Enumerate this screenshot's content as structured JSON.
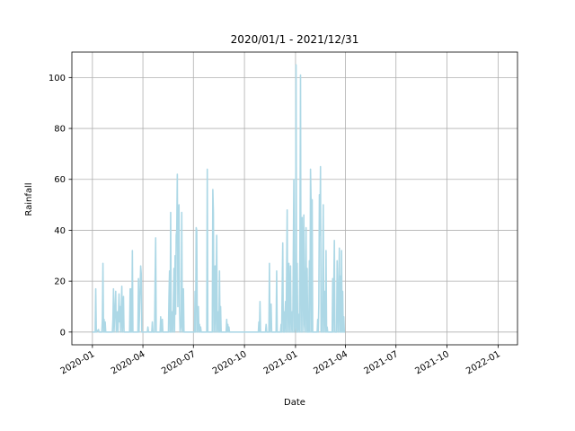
{
  "chart_data": {
    "type": "line",
    "title": "2020/01/1 - 2021/12/31",
    "xlabel": "Date",
    "ylabel": "Rainfall",
    "xlim": [
      "2019-11-25",
      "2022-02-05"
    ],
    "ylim": [
      -5,
      110
    ],
    "grid": true,
    "line_color": "#add8e6",
    "x_ticks": [
      {
        "date": "2020-01-01",
        "label": "2020-01"
      },
      {
        "date": "2020-04-01",
        "label": "2020-04"
      },
      {
        "date": "2020-07-01",
        "label": "2020-07"
      },
      {
        "date": "2020-10-01",
        "label": "2020-10"
      },
      {
        "date": "2021-01-01",
        "label": "2021-01"
      },
      {
        "date": "2021-04-01",
        "label": "2021-04"
      },
      {
        "date": "2021-07-01",
        "label": "2021-07"
      },
      {
        "date": "2021-10-01",
        "label": "2021-10"
      },
      {
        "date": "2022-01-01",
        "label": "2022-01"
      }
    ],
    "y_ticks": [
      0,
      20,
      40,
      60,
      80,
      100
    ],
    "series": [
      {
        "points": [
          [
            "2020-01-01",
            0
          ],
          [
            "2020-01-06",
            0
          ],
          [
            "2020-01-07",
            17
          ],
          [
            "2020-01-08",
            0
          ],
          [
            "2020-01-12",
            1
          ],
          [
            "2020-01-13",
            0
          ],
          [
            "2020-01-18",
            0
          ],
          [
            "2020-01-19",
            5
          ],
          [
            "2020-01-20",
            27
          ],
          [
            "2020-01-21",
            0
          ],
          [
            "2020-01-22",
            5
          ],
          [
            "2020-01-23",
            0
          ],
          [
            "2020-01-24",
            4
          ],
          [
            "2020-01-25",
            0
          ],
          [
            "2020-02-06",
            0
          ],
          [
            "2020-02-07",
            5
          ],
          [
            "2020-02-08",
            17
          ],
          [
            "2020-02-09",
            0
          ],
          [
            "2020-02-12",
            16
          ],
          [
            "2020-02-13",
            0
          ],
          [
            "2020-02-15",
            8
          ],
          [
            "2020-02-16",
            0
          ],
          [
            "2020-02-18",
            15
          ],
          [
            "2020-02-19",
            4
          ],
          [
            "2020-02-20",
            10
          ],
          [
            "2020-02-21",
            0
          ],
          [
            "2020-02-23",
            18
          ],
          [
            "2020-02-24",
            0
          ],
          [
            "2020-02-26",
            14
          ],
          [
            "2020-02-27",
            0
          ],
          [
            "2020-03-08",
            0
          ],
          [
            "2020-03-09",
            17
          ],
          [
            "2020-03-10",
            0
          ],
          [
            "2020-03-11",
            17
          ],
          [
            "2020-03-12",
            0
          ],
          [
            "2020-03-13",
            32
          ],
          [
            "2020-03-14",
            0
          ],
          [
            "2020-03-23",
            0
          ],
          [
            "2020-03-24",
            21
          ],
          [
            "2020-03-25",
            0
          ],
          [
            "2020-03-28",
            26
          ],
          [
            "2020-03-29",
            23
          ],
          [
            "2020-03-30",
            0
          ],
          [
            "2020-04-09",
            0
          ],
          [
            "2020-04-10",
            2
          ],
          [
            "2020-04-11",
            0
          ],
          [
            "2020-04-17",
            0
          ],
          [
            "2020-04-18",
            4
          ],
          [
            "2020-04-19",
            0
          ],
          [
            "2020-04-22",
            0
          ],
          [
            "2020-04-23",
            20
          ],
          [
            "2020-04-24",
            37
          ],
          [
            "2020-04-25",
            0
          ],
          [
            "2020-05-02",
            0
          ],
          [
            "2020-05-03",
            6
          ],
          [
            "2020-05-04",
            0
          ],
          [
            "2020-05-06",
            5
          ],
          [
            "2020-05-07",
            0
          ],
          [
            "2020-05-17",
            0
          ],
          [
            "2020-05-18",
            14
          ],
          [
            "2020-05-19",
            24
          ],
          [
            "2020-05-20",
            0
          ],
          [
            "2020-05-21",
            47
          ],
          [
            "2020-05-22",
            0
          ],
          [
            "2020-05-24",
            8
          ],
          [
            "2020-05-25",
            0
          ],
          [
            "2020-05-27",
            25
          ],
          [
            "2020-05-28",
            0
          ],
          [
            "2020-05-29",
            30
          ],
          [
            "2020-05-30",
            7
          ],
          [
            "2020-05-31",
            38
          ],
          [
            "2020-06-01",
            40
          ],
          [
            "2020-06-02",
            62
          ],
          [
            "2020-06-03",
            10
          ],
          [
            "2020-06-04",
            44
          ],
          [
            "2020-06-05",
            50
          ],
          [
            "2020-06-06",
            9
          ],
          [
            "2020-06-07",
            0
          ],
          [
            "2020-06-09",
            3
          ],
          [
            "2020-06-10",
            47
          ],
          [
            "2020-06-11",
            0
          ],
          [
            "2020-06-12",
            2
          ],
          [
            "2020-06-13",
            17
          ],
          [
            "2020-06-14",
            0
          ],
          [
            "2020-07-03",
            0
          ],
          [
            "2020-07-04",
            16
          ],
          [
            "2020-07-05",
            0
          ],
          [
            "2020-07-06",
            41
          ],
          [
            "2020-07-07",
            40
          ],
          [
            "2020-07-08",
            0
          ],
          [
            "2020-07-09",
            4
          ],
          [
            "2020-07-10",
            10
          ],
          [
            "2020-07-11",
            0
          ],
          [
            "2020-07-12",
            3
          ],
          [
            "2020-07-13",
            0
          ],
          [
            "2020-07-14",
            2
          ],
          [
            "2020-07-15",
            0
          ],
          [
            "2020-07-25",
            0
          ],
          [
            "2020-07-26",
            64
          ],
          [
            "2020-07-27",
            0
          ],
          [
            "2020-08-04",
            0
          ],
          [
            "2020-08-05",
            56
          ],
          [
            "2020-08-06",
            47
          ],
          [
            "2020-08-07",
            0
          ],
          [
            "2020-08-09",
            26
          ],
          [
            "2020-08-10",
            0
          ],
          [
            "2020-08-12",
            38
          ],
          [
            "2020-08-13",
            0
          ],
          [
            "2020-08-15",
            8
          ],
          [
            "2020-08-16",
            0
          ],
          [
            "2020-08-17",
            24
          ],
          [
            "2020-08-18",
            0
          ],
          [
            "2020-08-19",
            10
          ],
          [
            "2020-08-20",
            0
          ],
          [
            "2020-08-29",
            0
          ],
          [
            "2020-08-30",
            5
          ],
          [
            "2020-08-31",
            0
          ],
          [
            "2020-09-01",
            3
          ],
          [
            "2020-09-02",
            0
          ],
          [
            "2020-09-03",
            2
          ],
          [
            "2020-09-04",
            0
          ],
          [
            "2020-10-26",
            0
          ],
          [
            "2020-10-27",
            4
          ],
          [
            "2020-10-28",
            0
          ],
          [
            "2020-10-29",
            12
          ],
          [
            "2020-10-30",
            0
          ],
          [
            "2020-11-08",
            0
          ],
          [
            "2020-11-09",
            3
          ],
          [
            "2020-11-10",
            0
          ],
          [
            "2020-11-14",
            0
          ],
          [
            "2020-11-15",
            27
          ],
          [
            "2020-11-16",
            0
          ],
          [
            "2020-11-18",
            11
          ],
          [
            "2020-11-19",
            0
          ],
          [
            "2020-11-27",
            0
          ],
          [
            "2020-11-28",
            24
          ],
          [
            "2020-11-29",
            0
          ],
          [
            "2020-12-05",
            0
          ],
          [
            "2020-12-06",
            3
          ],
          [
            "2020-12-07",
            0
          ],
          [
            "2020-12-09",
            35
          ],
          [
            "2020-12-10",
            0
          ],
          [
            "2020-12-11",
            8
          ],
          [
            "2020-12-12",
            0
          ],
          [
            "2020-12-14",
            12
          ],
          [
            "2020-12-15",
            0
          ],
          [
            "2020-12-17",
            48
          ],
          [
            "2020-12-18",
            0
          ],
          [
            "2020-12-20",
            27
          ],
          [
            "2020-12-21",
            0
          ],
          [
            "2020-12-23",
            26
          ],
          [
            "2020-12-24",
            0
          ],
          [
            "2020-12-26",
            8
          ],
          [
            "2020-12-27",
            0
          ],
          [
            "2020-12-29",
            60
          ],
          [
            "2020-12-30",
            0
          ],
          [
            "2021-01-01",
            3
          ],
          [
            "2021-01-02",
            105
          ],
          [
            "2021-01-03",
            0
          ],
          [
            "2021-01-04",
            27
          ],
          [
            "2021-01-05",
            0
          ],
          [
            "2021-01-07",
            7
          ],
          [
            "2021-01-08",
            0
          ],
          [
            "2021-01-09",
            37
          ],
          [
            "2021-01-10",
            101
          ],
          [
            "2021-01-11",
            0
          ],
          [
            "2021-01-12",
            42
          ],
          [
            "2021-01-13",
            45
          ],
          [
            "2021-01-14",
            0
          ],
          [
            "2021-01-16",
            46
          ],
          [
            "2021-01-17",
            3
          ],
          [
            "2021-01-18",
            0
          ],
          [
            "2021-01-20",
            41
          ],
          [
            "2021-01-21",
            0
          ],
          [
            "2021-01-22",
            25
          ],
          [
            "2021-01-23",
            0
          ],
          [
            "2021-01-24",
            8
          ],
          [
            "2021-01-25",
            0
          ],
          [
            "2021-01-26",
            28
          ],
          [
            "2021-01-27",
            0
          ],
          [
            "2021-01-28",
            64
          ],
          [
            "2021-01-29",
            52
          ],
          [
            "2021-01-30",
            0
          ],
          [
            "2021-01-31",
            52
          ],
          [
            "2021-02-01",
            0
          ],
          [
            "2021-02-09",
            0
          ],
          [
            "2021-02-10",
            5
          ],
          [
            "2021-02-11",
            0
          ],
          [
            "2021-02-12",
            11
          ],
          [
            "2021-02-13",
            54
          ],
          [
            "2021-02-14",
            38
          ],
          [
            "2021-02-15",
            65
          ],
          [
            "2021-02-16",
            0
          ],
          [
            "2021-02-17",
            3
          ],
          [
            "2021-02-18",
            0
          ],
          [
            "2021-02-20",
            50
          ],
          [
            "2021-02-21",
            0
          ],
          [
            "2021-02-22",
            12
          ],
          [
            "2021-02-23",
            16
          ],
          [
            "2021-02-24",
            0
          ],
          [
            "2021-02-25",
            32
          ],
          [
            "2021-02-26",
            0
          ],
          [
            "2021-02-27",
            2
          ],
          [
            "2021-02-28",
            0
          ],
          [
            "2021-03-08",
            0
          ],
          [
            "2021-03-09",
            21
          ],
          [
            "2021-03-10",
            0
          ],
          [
            "2021-03-12",
            36
          ],
          [
            "2021-03-13",
            0
          ],
          [
            "2021-03-16",
            0
          ],
          [
            "2021-03-17",
            28
          ],
          [
            "2021-03-18",
            14
          ],
          [
            "2021-03-19",
            0
          ],
          [
            "2021-03-21",
            33
          ],
          [
            "2021-03-22",
            0
          ],
          [
            "2021-03-23",
            22
          ],
          [
            "2021-03-24",
            0
          ],
          [
            "2021-03-25",
            32
          ],
          [
            "2021-03-26",
            0
          ],
          [
            "2021-03-27",
            16
          ],
          [
            "2021-03-28",
            0
          ],
          [
            "2021-03-29",
            6
          ],
          [
            "2021-03-30",
            0
          ],
          [
            "2021-03-31",
            0
          ]
        ]
      }
    ]
  }
}
